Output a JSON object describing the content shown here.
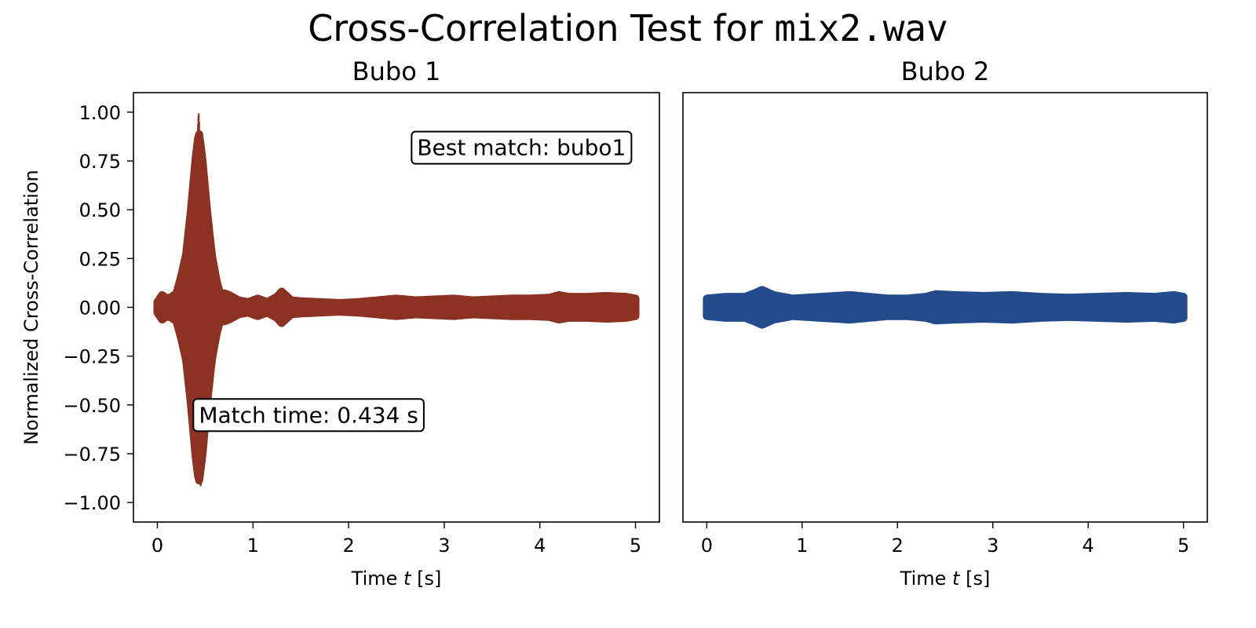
{
  "figure": {
    "title_prefix": "Cross-Correlation Test for ",
    "title_file": "mix2.wav"
  },
  "chart_data": [
    {
      "type": "line",
      "title": "Bubo 1",
      "xlabel_prefix": "Time ",
      "xlabel_var": "t",
      "xlabel_suffix": " [s]",
      "ylabel": "Normalized Cross-Correlation",
      "xlim": [
        -0.25,
        5.25
      ],
      "ylim": [
        -1.1,
        1.1
      ],
      "xticks": [
        0,
        1,
        2,
        3,
        4,
        5
      ],
      "xtick_labels": [
        "0",
        "1",
        "2",
        "3",
        "4",
        "5"
      ],
      "yticks": [
        1.0,
        0.75,
        0.5,
        0.25,
        0.0,
        -0.25,
        -0.5,
        -0.75,
        -1.0
      ],
      "ytick_labels": [
        "1.00",
        "0.75",
        "0.50",
        "0.25",
        "0.00",
        "−0.25",
        "−0.50",
        "−0.75",
        "−1.00"
      ],
      "color": "#8b3222",
      "series": [
        {
          "envelope_t": [
            0.0,
            0.05,
            0.1,
            0.15,
            0.2,
            0.25,
            0.3,
            0.35,
            0.4,
            0.434,
            0.47,
            0.52,
            0.57,
            0.62,
            0.66,
            0.7,
            0.75,
            0.85,
            0.95,
            1.05,
            1.15,
            1.25,
            1.3,
            1.4,
            1.5,
            1.7,
            1.9,
            2.1,
            2.3,
            2.5,
            2.7,
            2.9,
            3.1,
            3.3,
            3.5,
            3.7,
            3.9,
            4.1,
            4.2,
            4.3,
            4.5,
            4.7,
            4.9,
            5.0
          ],
          "envelope_amp": [
            0.03,
            0.07,
            0.05,
            0.06,
            0.08,
            0.18,
            0.3,
            0.55,
            0.85,
            1.0,
            0.85,
            0.55,
            0.3,
            0.15,
            0.07,
            0.08,
            0.07,
            0.04,
            0.03,
            0.05,
            0.03,
            0.06,
            0.09,
            0.04,
            0.035,
            0.03,
            0.025,
            0.03,
            0.04,
            0.05,
            0.04,
            0.045,
            0.05,
            0.04,
            0.045,
            0.05,
            0.05,
            0.055,
            0.07,
            0.06,
            0.06,
            0.065,
            0.06,
            0.05
          ]
        }
      ],
      "annotations": [
        {
          "text": "Best match: bubo1",
          "x": 4.9,
          "y": 0.82,
          "ha": "right"
        },
        {
          "text": "Match time: 0.434 s",
          "x": 0.434,
          "y": -0.55,
          "ha": "left"
        }
      ]
    },
    {
      "type": "line",
      "title": "Bubo 2",
      "xlabel_prefix": "Time ",
      "xlabel_var": "t",
      "xlabel_suffix": " [s]",
      "ylabel": "",
      "xlim": [
        -0.25,
        5.25
      ],
      "ylim": [
        -1.1,
        1.1
      ],
      "xticks": [
        0,
        1,
        2,
        3,
        4,
        5
      ],
      "xtick_labels": [
        "0",
        "1",
        "2",
        "3",
        "4",
        "5"
      ],
      "yticks": [],
      "ytick_labels": [],
      "color": "#234a8a",
      "series": [
        {
          "envelope_t": [
            0.0,
            0.2,
            0.4,
            0.5,
            0.58,
            0.7,
            0.9,
            1.2,
            1.5,
            1.7,
            1.9,
            2.1,
            2.3,
            2.4,
            2.6,
            2.9,
            3.2,
            3.5,
            3.8,
            4.1,
            4.4,
            4.7,
            4.9,
            5.0
          ],
          "envelope_amp": [
            0.05,
            0.06,
            0.06,
            0.08,
            0.1,
            0.07,
            0.05,
            0.06,
            0.07,
            0.06,
            0.05,
            0.05,
            0.06,
            0.075,
            0.07,
            0.065,
            0.07,
            0.06,
            0.055,
            0.06,
            0.065,
            0.06,
            0.07,
            0.06
          ]
        }
      ],
      "annotations": []
    }
  ]
}
